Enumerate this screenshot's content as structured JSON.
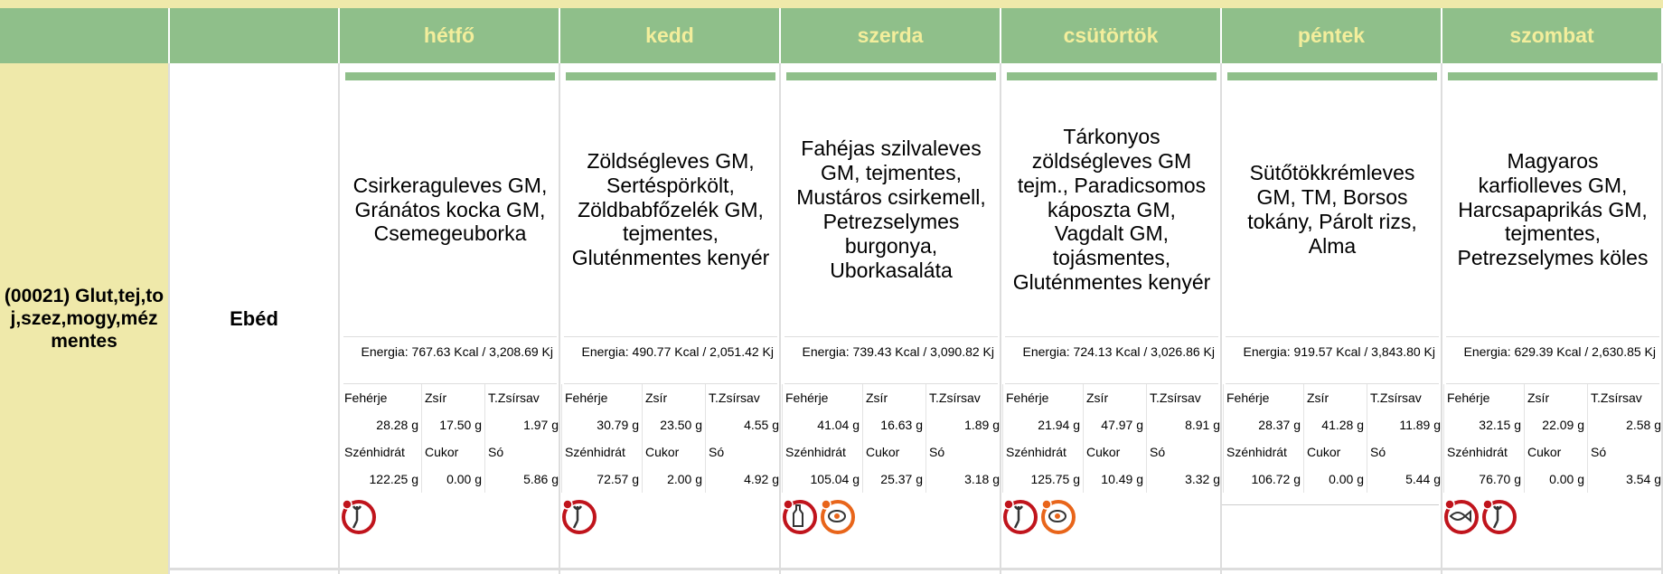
{
  "header": {
    "days": [
      "hétfő",
      "kedd",
      "szerda",
      "csütörtök",
      "péntek",
      "szombat"
    ]
  },
  "row": {
    "diet": "(00021) Glut,tej,toj,szez,mogy,méz mentes",
    "meal": "Ebéd"
  },
  "nutrient_labels": [
    "Fehérje",
    "Zsír",
    "T.Zsírsav",
    "Szénhidrát",
    "Cukor",
    "Só"
  ],
  "menu": [
    {
      "food": "Csirkeraguleves GM, Gránátos kocka GM, Csemegeuborka",
      "energy": "Energia: 767.63 Kcal / 3,208.69 Kj",
      "values": [
        "28.28 g",
        "17.50 g",
        "1.97 g",
        "122.25 g",
        "0.00 g",
        "5.86 g"
      ]
    },
    {
      "food": "Zöldségleves GM, Sertéspörkölt, Zöldbabfőzelék GM, tejmentes, Gluténmentes kenyér",
      "energy": "Energia: 490.77 Kcal / 2,051.42 Kj",
      "values": [
        "30.79 g",
        "23.50 g",
        "4.55 g",
        "72.57 g",
        "2.00 g",
        "4.92 g"
      ]
    },
    {
      "food": "Fahéjas szilvaleves GM, tejmentes, Mustáros csirkemell, Petrezselymes burgonya, Uborkasaláta",
      "energy": "Energia: 739.43 Kcal / 3,090.82 Kj",
      "values": [
        "41.04 g",
        "16.63 g",
        "1.89 g",
        "105.04 g",
        "25.37 g",
        "3.18 g"
      ]
    },
    {
      "food": "Tárkonyos zöldségleves GM tejm., Paradicsomos káposzta GM, Vagdalt GM, tojásmentes, Gluténmentes kenyér",
      "energy": "Energia: 724.13 Kcal / 3,026.86 Kj",
      "values": [
        "21.94 g",
        "47.97 g",
        "8.91 g",
        "125.75 g",
        "10.49 g",
        "3.32 g"
      ]
    },
    {
      "food": "Sütőtökkrémleves GM, TM, Borsos tokány, Párolt rizs, Alma",
      "energy": "Energia: 919.57 Kcal / 3,843.80 Kj",
      "values": [
        "28.37 g",
        "41.28 g",
        "11.89 g",
        "106.72 g",
        "0.00 g",
        "5.44 g"
      ]
    },
    {
      "food": "Magyaros karfiolleves GM, Harcsapaprikás GM, tejmentes, Petrezselymes köles",
      "energy": "Energia: 629.39 Kcal / 2,630.85 Kj",
      "values": [
        "32.15 g",
        "22.09 g",
        "2.58 g",
        "76.70 g",
        "0.00 g",
        "3.54 g"
      ]
    }
  ]
}
